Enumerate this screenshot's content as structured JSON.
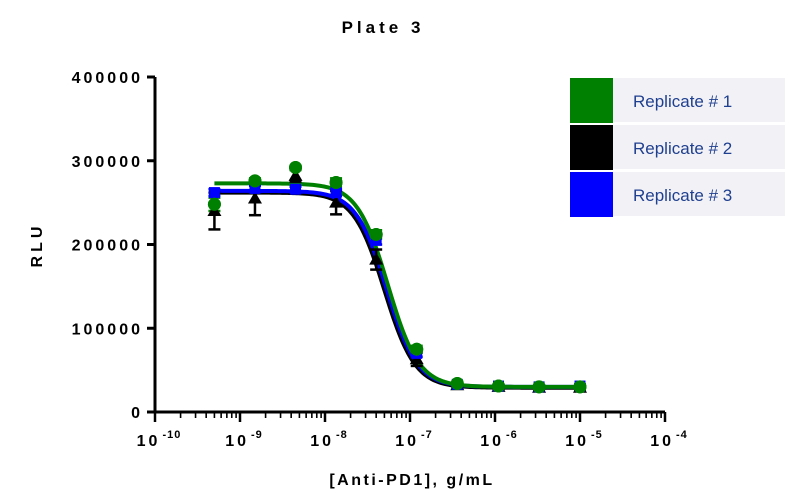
{
  "chart_data": {
    "type": "scatter",
    "title": "Plate 3",
    "xlabel": "[Anti-PD1], g/mL",
    "ylabel": "RLU",
    "x_scale": "log",
    "xlim": [
      1e-10,
      0.0001
    ],
    "ylim": [
      0,
      400000
    ],
    "y_ticks": [
      "0",
      "100000",
      "200000",
      "300000",
      "400000"
    ],
    "x_ticks": [
      {
        "base": "10",
        "exp": "-10"
      },
      {
        "base": "10",
        "exp": "-9"
      },
      {
        "base": "10",
        "exp": "-8"
      },
      {
        "base": "10",
        "exp": "-7"
      },
      {
        "base": "10",
        "exp": "-6"
      },
      {
        "base": "10",
        "exp": "-5"
      },
      {
        "base": "10",
        "exp": "-4"
      }
    ],
    "x": [
      5e-10,
      1.5e-09,
      4.5e-09,
      1.35e-08,
      4e-08,
      1.2e-07,
      3.6e-07,
      1.1e-06,
      3.3e-06,
      1e-05
    ],
    "legend_placement": "top-right",
    "grid": false,
    "series": [
      {
        "name": "Replicate # 1",
        "color": "#008000",
        "marker": "circle",
        "values": [
          248000,
          276000,
          292000,
          274000,
          212000,
          75000,
          34000,
          31000,
          30000,
          30000
        ],
        "errors": [
          8000,
          3000,
          2000,
          5000,
          5000,
          4000,
          2000,
          2000,
          2000,
          2000
        ],
        "fit": {
          "top": 273000,
          "bottom": 30000,
          "ec50": 5.5e-08,
          "hill": 2.4
        }
      },
      {
        "name": "Replicate # 2",
        "color": "#000000",
        "marker": "triangle",
        "values": [
          240000,
          255000,
          282000,
          250000,
          182000,
          63000,
          32000,
          30000,
          29000,
          29000
        ],
        "errors": [
          22000,
          20000,
          7000,
          14000,
          12000,
          8000,
          3000,
          3000,
          3000,
          3000
        ],
        "fit": {
          "top": 262000,
          "bottom": 29000,
          "ec50": 5e-08,
          "hill": 2.4
        }
      },
      {
        "name": "Replicate # 3",
        "color": "#0000ff",
        "marker": "square",
        "values": [
          262000,
          267000,
          266000,
          262000,
          205000,
          70000,
          33000,
          31000,
          30000,
          31000
        ],
        "errors": [
          4000,
          3000,
          3000,
          4000,
          5000,
          4000,
          2000,
          2000,
          2000,
          2000
        ],
        "fit": {
          "top": 264000,
          "bottom": 30000,
          "ec50": 5.3e-08,
          "hill": 2.4
        }
      }
    ]
  }
}
